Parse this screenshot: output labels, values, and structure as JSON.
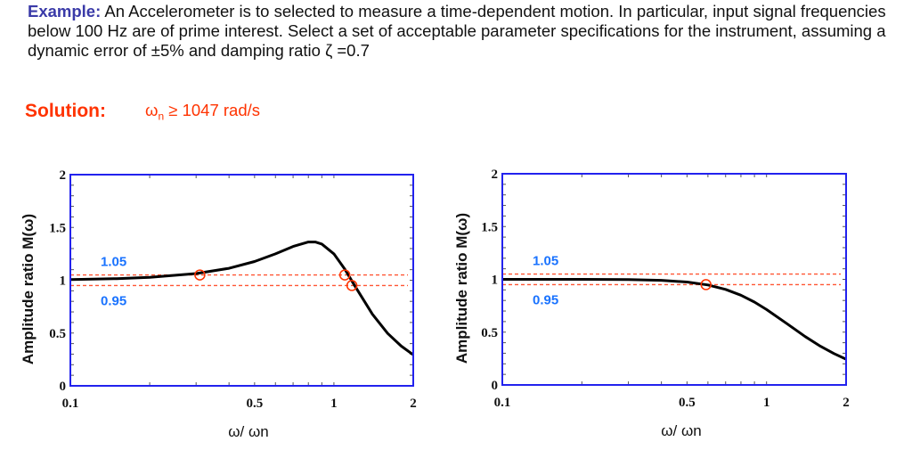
{
  "header": {
    "example_label": "Example:",
    "example_text": "An Accelerometer is to selected to measure a time-dependent motion. In particular, input signal frequencies below 100 Hz are of prime interest. Select a set of acceptable parameter specifications for the instrument, assuming a dynamic error of ±5% and damping ratio ζ =0.7",
    "solution_label": "Solution:",
    "solution_symbol": "ω",
    "solution_sub": "n",
    "solution_text": "≥ 1047 rad/s"
  },
  "colors": {
    "frame": "#2222ee",
    "curve": "#000000",
    "bands": "#ff5533",
    "band_labels": "#1a73ff",
    "markers": "#ff3300"
  },
  "chart_data": [
    {
      "type": "line",
      "xscale": "log",
      "xlim": [
        0.1,
        2
      ],
      "ylim": [
        0,
        2
      ],
      "xticks": [
        "0.1",
        "0.5",
        "1",
        "2"
      ],
      "yticks": [
        "0",
        "0.5",
        "1",
        "1.5",
        "2"
      ],
      "xlabel": "ω/ ωn",
      "ylabel": "Amplitude ratio M(ω)",
      "bands": [
        {
          "value": 1.05,
          "label": "1.05"
        },
        {
          "value": 0.95,
          "label": "0.95"
        }
      ],
      "x": [
        0.1,
        0.15,
        0.2,
        0.3,
        0.4,
        0.5,
        0.6,
        0.7,
        0.8,
        0.85,
        0.9,
        1.0,
        1.1,
        1.2,
        1.4,
        1.6,
        1.8,
        2.0
      ],
      "y": [
        1.007,
        1.015,
        1.028,
        1.063,
        1.113,
        1.177,
        1.25,
        1.32,
        1.362,
        1.362,
        1.343,
        1.25,
        1.105,
        0.947,
        0.678,
        0.496,
        0.376,
        0.294
      ],
      "markers": [
        {
          "x": 0.31,
          "y": 1.05
        },
        {
          "x": 1.1,
          "y": 1.05
        },
        {
          "x": 1.17,
          "y": 0.95
        }
      ]
    },
    {
      "type": "line",
      "xscale": "log",
      "xlim": [
        0.1,
        2
      ],
      "ylim": [
        0,
        2
      ],
      "xticks": [
        "0.1",
        "0.5",
        "1",
        "2"
      ],
      "yticks": [
        "0",
        "0.5",
        "1",
        "1.5",
        "2"
      ],
      "xlabel": "ω/ ωn",
      "ylabel": "Amplitude ratio M(ω)",
      "bands": [
        {
          "value": 1.05,
          "label": "1.05"
        },
        {
          "value": 0.95,
          "label": "0.95"
        }
      ],
      "x": [
        0.1,
        0.2,
        0.3,
        0.4,
        0.5,
        0.6,
        0.7,
        0.8,
        0.9,
        1.0,
        1.2,
        1.4,
        1.6,
        1.8,
        2.0
      ],
      "y": [
        1.0,
        1.0,
        0.998,
        0.991,
        0.975,
        0.947,
        0.905,
        0.85,
        0.785,
        0.714,
        0.576,
        0.458,
        0.366,
        0.297,
        0.244
      ],
      "markers": [
        {
          "x": 0.59,
          "y": 0.95
        }
      ]
    }
  ]
}
